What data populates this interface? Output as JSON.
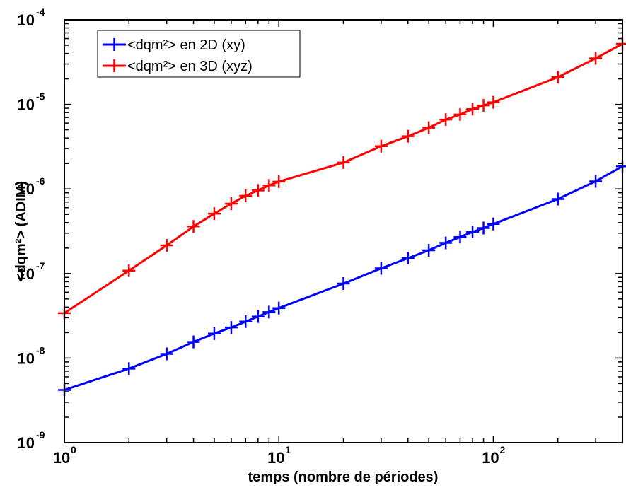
{
  "chart_data": {
    "type": "line",
    "title": "",
    "xlabel": "temps (nombre de périodes)",
    "ylabel": "<dqm²> (ADIM)",
    "xscale": "log",
    "yscale": "log",
    "xlim": [
      1,
      400
    ],
    "ylim": [
      1e-09,
      0.0001
    ],
    "grid": false,
    "legend_position": "top-left",
    "x_ticks": [
      {
        "value": 1,
        "base": "10",
        "exp": "0"
      },
      {
        "value": 10,
        "base": "10",
        "exp": "1"
      },
      {
        "value": 100,
        "base": "10",
        "exp": "2"
      }
    ],
    "y_ticks": [
      {
        "value": 1e-09,
        "base": "10",
        "exp": "-9"
      },
      {
        "value": 1e-08,
        "base": "10",
        "exp": "-8"
      },
      {
        "value": 1e-07,
        "base": "10",
        "exp": "-7"
      },
      {
        "value": 1e-06,
        "base": "10",
        "exp": "-6"
      },
      {
        "value": 1e-05,
        "base": "10",
        "exp": "-5"
      },
      {
        "value": 0.0001,
        "base": "10",
        "exp": "-4"
      }
    ],
    "x": [
      1,
      2,
      3,
      4,
      5,
      6,
      7,
      8,
      9,
      10,
      20,
      30,
      40,
      50,
      60,
      70,
      80,
      90,
      100,
      200,
      300,
      400
    ],
    "series": [
      {
        "name": "<dqm²> en 2D (xy)",
        "color": "#0000ff",
        "marker": "plus",
        "values": [
          4.2e-09,
          7.5e-09,
          1.12e-08,
          1.55e-08,
          1.95e-08,
          2.3e-08,
          2.7e-08,
          3.1e-08,
          3.5e-08,
          3.9e-08,
          7.6e-08,
          1.15e-07,
          1.52e-07,
          1.88e-07,
          2.3e-07,
          2.7e-07,
          3.1e-07,
          3.45e-07,
          3.85e-07,
          7.6e-07,
          1.23e-06,
          1.85e-06
        ]
      },
      {
        "name": "<dqm²> en 3D (xyz)",
        "color": "#ff0000",
        "marker": "plus",
        "values": [
          3.4e-08,
          1.08e-07,
          2.15e-07,
          3.6e-07,
          5.1e-07,
          6.7e-07,
          8.3e-07,
          9.6e-07,
          1.1e-06,
          1.22e-06,
          2.05e-06,
          3.2e-06,
          4.2e-06,
          5.3e-06,
          6.6e-06,
          7.6e-06,
          8.8e-06,
          9.7e-06,
          1.06e-05,
          2.1e-05,
          3.5e-05,
          5.2e-05
        ]
      }
    ]
  }
}
